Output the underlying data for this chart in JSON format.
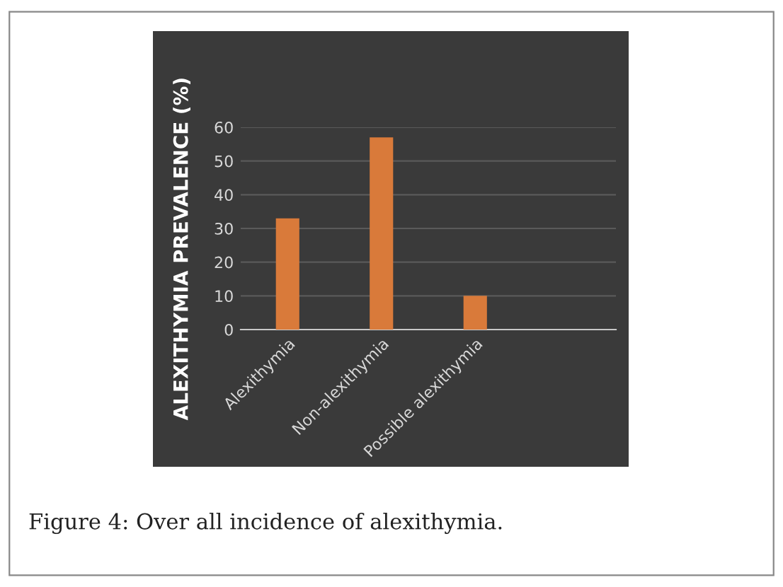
{
  "chart_data": {
    "type": "bar",
    "ylabel": "ALEXITHYMIA PREVALENCE (%)",
    "categories": [
      "Alexithymia",
      "Non-alexithymia",
      "Possible alexithymia",
      null
    ],
    "values": [
      33,
      57,
      10,
      null
    ],
    "color": "#d97a3a",
    "ylim": [
      0,
      60
    ],
    "yticks": [
      0,
      10,
      20,
      30,
      40,
      50,
      60
    ],
    "grid": "y",
    "annotations": [
      "Figure 4: Over all incidence of alexithymia."
    ]
  }
}
